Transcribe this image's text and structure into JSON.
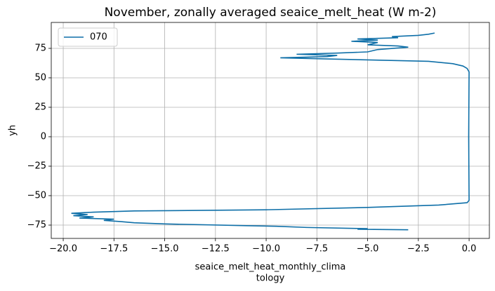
{
  "chart_data": {
    "type": "line",
    "title": "November, zonally averaged seaice_melt_heat (W m-2)",
    "xlabel": [
      "seaice_melt_heat_monthly_clima",
      "tology"
    ],
    "ylabel": "yh",
    "x": [
      -3.0,
      -5.5,
      -5.0,
      -8,
      -9.5,
      -11,
      -15,
      -16.5,
      -17.2,
      -18,
      -17.5,
      -19.2,
      -18.5,
      -19.5,
      -18.8,
      -19.6,
      -18.5,
      -16.5,
      -10,
      -5,
      -1.5,
      -0.1,
      0,
      -0.02,
      0,
      -0.1,
      -0.3,
      -0.8,
      -2,
      -7,
      -9.3,
      -7,
      -6.5,
      -8.5,
      -6.5,
      -5,
      -4.5,
      -3.0,
      -3.5,
      -5,
      -4.5,
      -5.8,
      -4.5,
      -5.5,
      -3.5,
      -3.8,
      -2.5,
      -2.0,
      -1.7
    ],
    "series": [
      {
        "name": "070",
        "color": "#0e6fa8",
        "values": [
          -79,
          -78.5,
          -78,
          -77,
          -76,
          -75.5,
          -74,
          -73,
          -72,
          -71,
          -70,
          -69,
          -68,
          -67,
          -66,
          -65,
          -64,
          -63,
          -62,
          -60,
          -58,
          -56,
          -54,
          0,
          55,
          58,
          60,
          62,
          64,
          66,
          67,
          68,
          69,
          70,
          71,
          72,
          74,
          76,
          77,
          78,
          80,
          81,
          82,
          83,
          84,
          85,
          86,
          87,
          88
        ]
      }
    ],
    "xlim": [
      -20.59,
      1.0
    ],
    "ylim": [
      -86.3,
      97
    ],
    "xticks": [
      {
        "value": -20,
        "label": "−20.0"
      },
      {
        "value": -17.5,
        "label": "−17.5"
      },
      {
        "value": -15,
        "label": "−15.0"
      },
      {
        "value": -12.5,
        "label": "−12.5"
      },
      {
        "value": -10,
        "label": "−10.0"
      },
      {
        "value": -7.5,
        "label": "−7.5"
      },
      {
        "value": -5,
        "label": "−5.0"
      },
      {
        "value": -2.5,
        "label": "−2.5"
      },
      {
        "value": 0,
        "label": "0.0"
      }
    ],
    "yticks": [
      {
        "value": -75,
        "label": "−75"
      },
      {
        "value": -50,
        "label": "−50"
      },
      {
        "value": -25,
        "label": "−25"
      },
      0,
      25,
      50,
      75
    ],
    "grid": true,
    "legend": "upper left"
  }
}
